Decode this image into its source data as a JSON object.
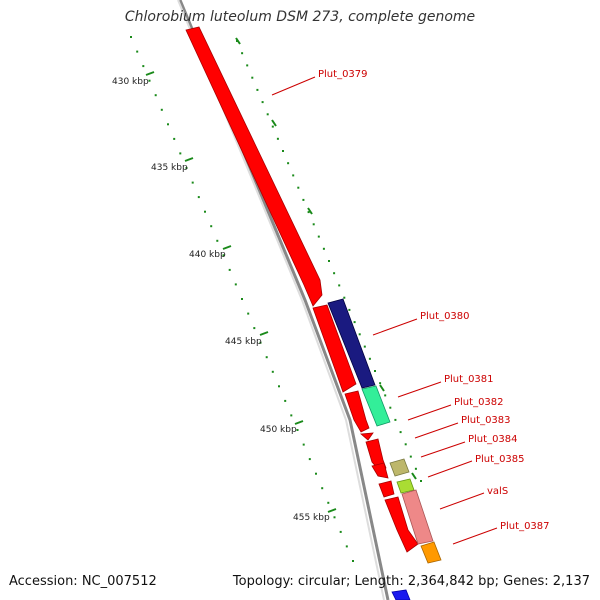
{
  "title": "Chlorobium luteolum DSM 273, complete genome",
  "footer": {
    "accession": "Accession: NC_007512",
    "summary": "Topology: circular; Length: 2,364,842 bp; Genes: 2,137"
  },
  "colors": {
    "forward_strand": "#ff0000",
    "backbone": "#999999",
    "tick": "#1a8a1a",
    "label": "#cc0000"
  },
  "scale": {
    "ticks": [
      {
        "kbp": 430,
        "label": "430 kbp"
      },
      {
        "kbp": 435,
        "label": "435 kbp"
      },
      {
        "kbp": 440,
        "label": "440 kbp"
      },
      {
        "kbp": 445,
        "label": "445 kbp"
      },
      {
        "kbp": 450,
        "label": "450 kbp"
      },
      {
        "kbp": 455,
        "label": "455 kbp"
      }
    ]
  },
  "genes": [
    {
      "name": "Plut_0379",
      "color": "#ff0000",
      "track": "outer"
    },
    {
      "name": "Plut_0380",
      "color": "#1a1a80",
      "track": "inner"
    },
    {
      "name": "Plut_0381",
      "color": "#ff0000",
      "track": "outer"
    },
    {
      "name": "Plut_0382",
      "color": "#33ee99",
      "track": "inner"
    },
    {
      "name": "Plut_0383",
      "color": "#ff0000",
      "track": "outer"
    },
    {
      "name": "Plut_0384",
      "color": "#ff0000",
      "track": "outer"
    },
    {
      "name": "Plut_0385",
      "color": "#bdb76b",
      "track": "inner"
    },
    {
      "name": "valS",
      "color": "#ee8888",
      "track": "inner"
    },
    {
      "name": "Plut_0387",
      "color": "#ff9900",
      "track": "inner"
    }
  ]
}
